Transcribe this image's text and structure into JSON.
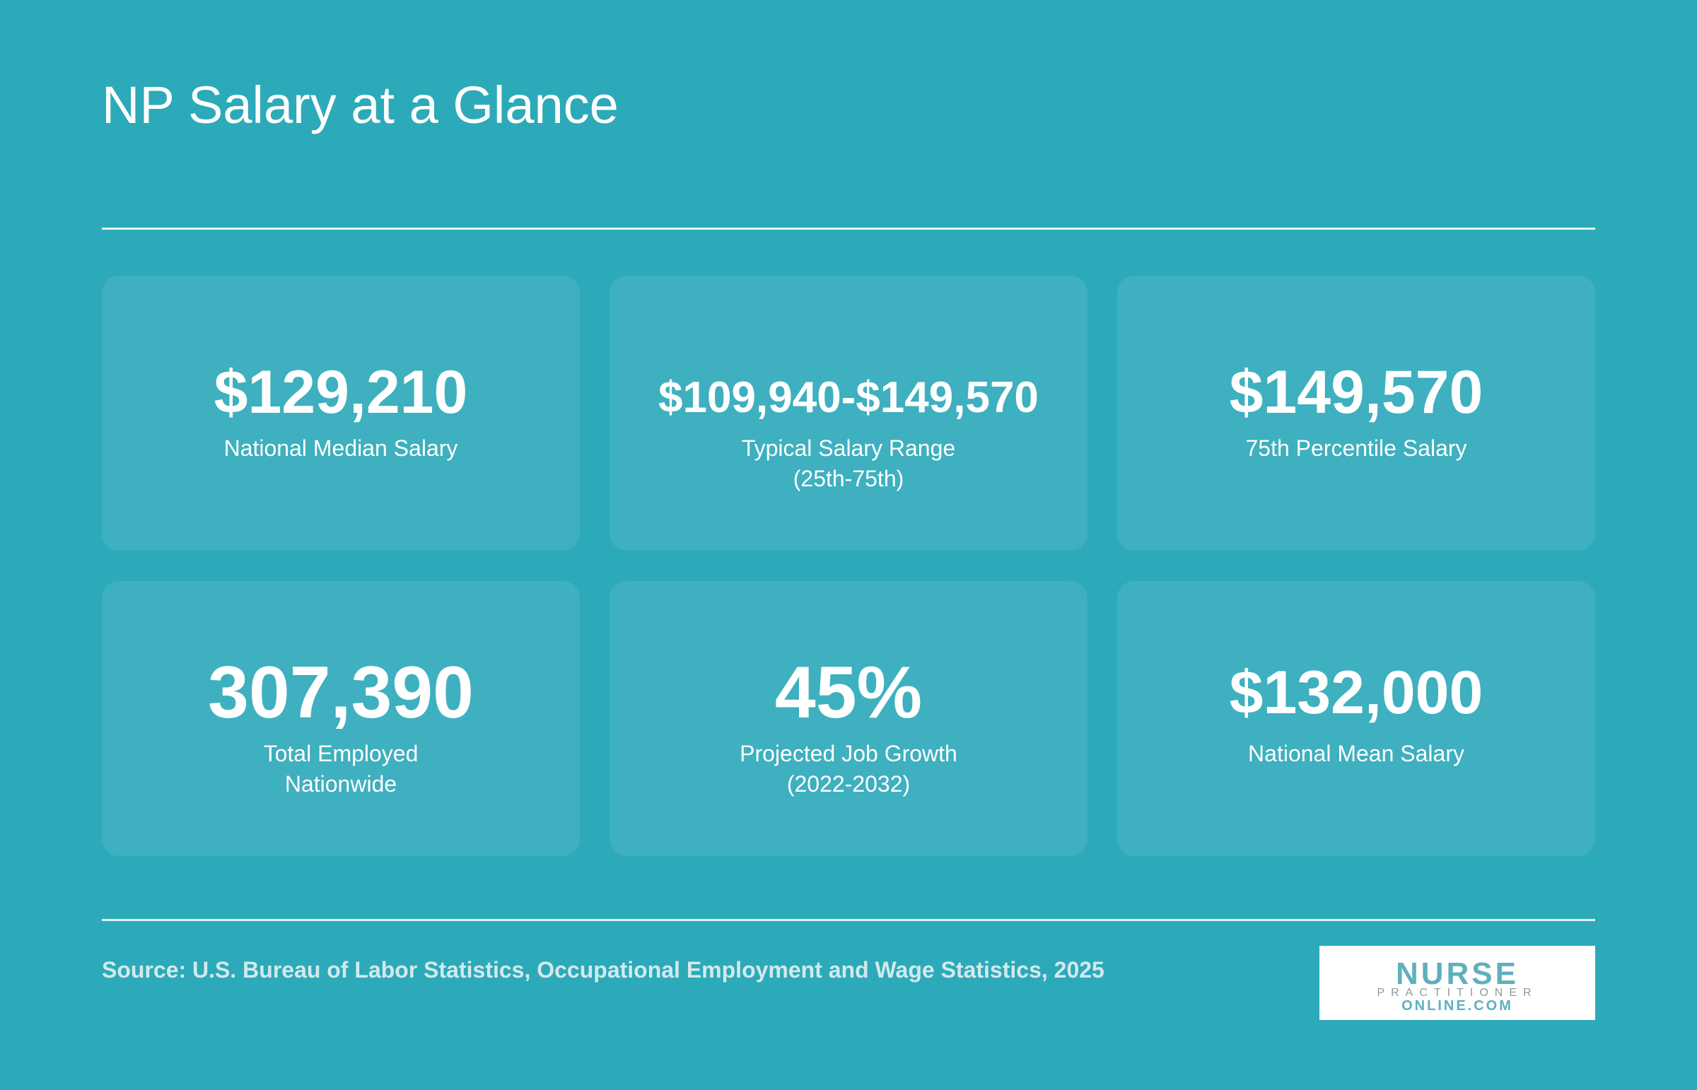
{
  "header": {
    "title": "NP Salary at a Glance"
  },
  "cards": [
    {
      "value": "$129,210",
      "label": [
        "National Median Salary"
      ]
    },
    {
      "value": "$109,940-$149,570",
      "label": [
        "Typical Salary Range",
        "(25th-75th)"
      ]
    },
    {
      "value": "$149,570",
      "label": [
        "75th Percentile Salary"
      ]
    },
    {
      "value": "307,390",
      "label": [
        "Total Employed",
        "Nationwide"
      ]
    },
    {
      "value": "45%",
      "label": [
        "Projected Job Growth",
        "(2022-2032)"
      ]
    },
    {
      "value": "$132,000",
      "label": [
        "National Mean Salary"
      ]
    }
  ],
  "footer": {
    "source": "Source: U.S. Bureau of Labor Statistics, Occupational Employment and Wage Statistics, 2025",
    "logo": [
      "NURSE",
      "PRACTITIONER",
      "ONLINE.COM"
    ]
  }
}
